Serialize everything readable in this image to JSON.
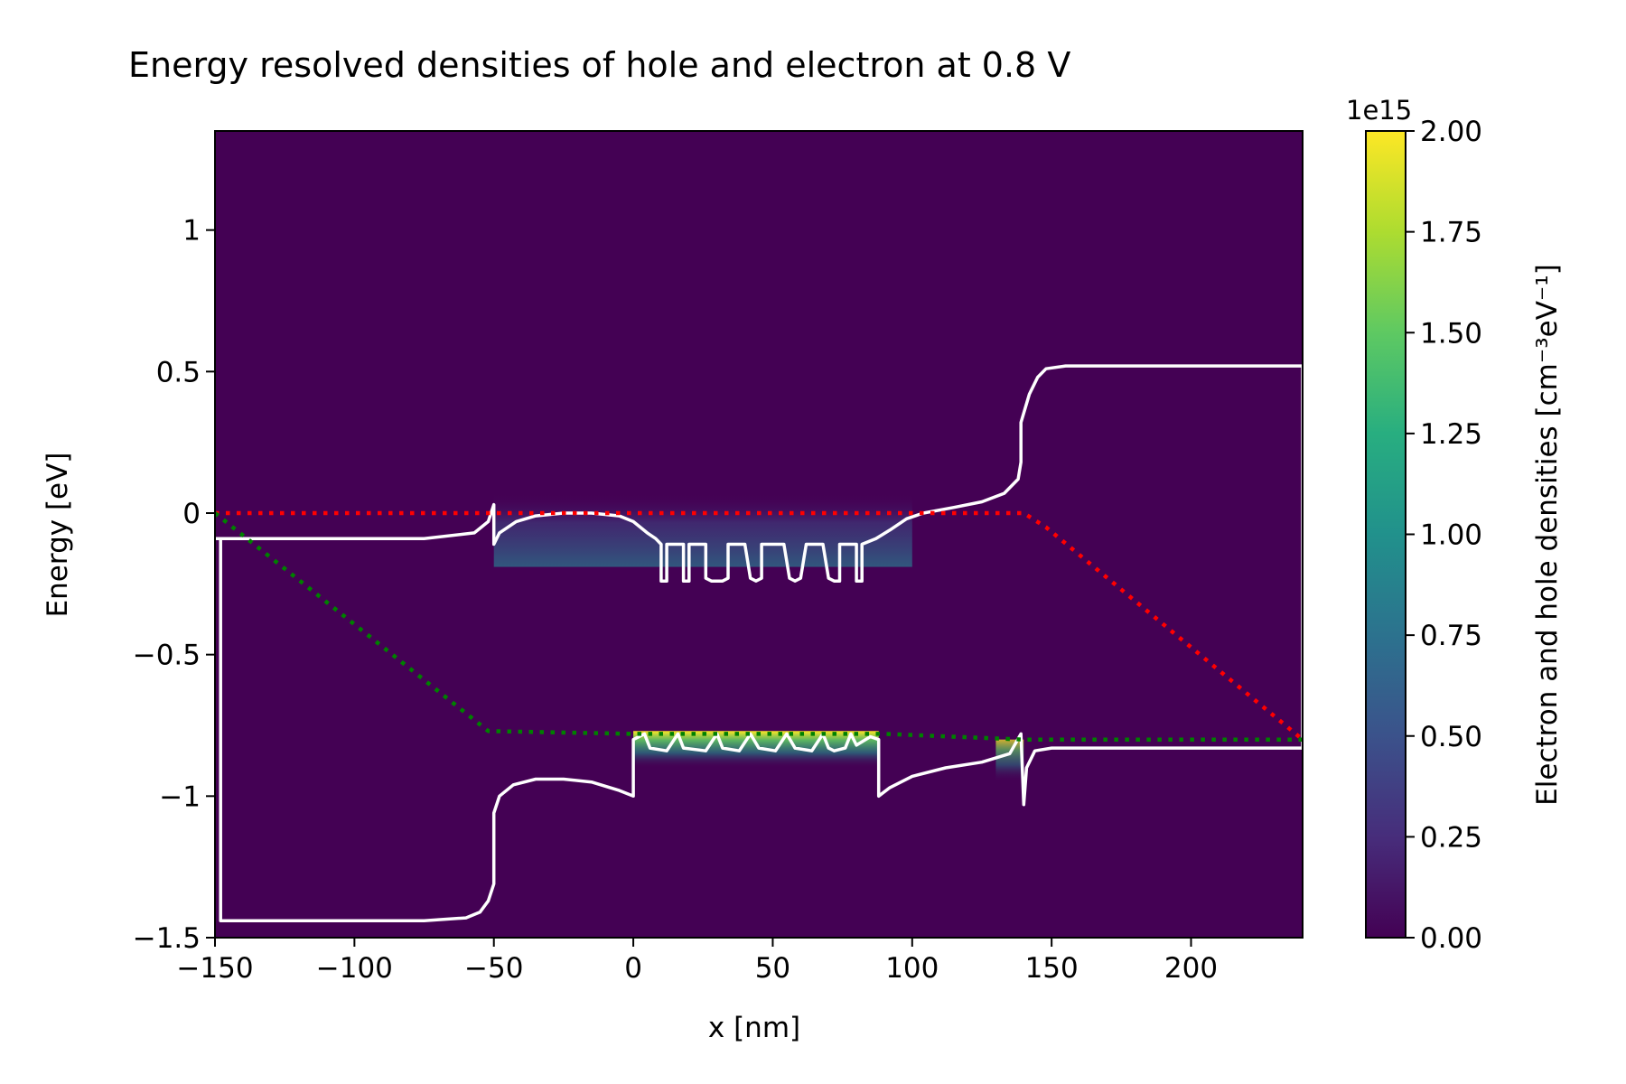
{
  "chart_data": {
    "type": "heatmap",
    "title": "Energy resolved densities of hole and electron at 0.8 V",
    "xlabel": "x [nm]",
    "ylabel": "Energy [eV]",
    "xlim": [
      -150,
      240
    ],
    "ylim": [
      -1.5,
      1.35
    ],
    "xticks": [
      -150,
      -100,
      -50,
      0,
      50,
      100,
      150,
      200
    ],
    "yticks": [
      -1.5,
      -1.0,
      -0.5,
      0.0,
      0.5,
      1.0
    ],
    "grid": false,
    "colorbar": {
      "label": "Electron and hole densities [cm⁻³eV⁻¹]",
      "exponent_label": "1e15",
      "colormap": "viridis",
      "range": [
        0,
        2.0
      ],
      "ticks": [
        "0.00",
        "0.25",
        "0.50",
        "0.75",
        "1.00",
        "1.25",
        "1.50",
        "1.75",
        "2.00"
      ]
    },
    "series": [
      {
        "name": "",
        "role": "conduction-band",
        "color": "#ffffff",
        "style": "solid",
        "points": [
          [
            -150,
            -0.09
          ],
          [
            -75,
            -0.09
          ],
          [
            -57,
            -0.07
          ],
          [
            -52,
            -0.03
          ],
          [
            -50,
            0.03
          ],
          [
            -50,
            -0.11
          ],
          [
            -48,
            -0.07
          ],
          [
            -42,
            -0.03
          ],
          [
            -35,
            -0.01
          ],
          [
            -25,
            0.0
          ],
          [
            -15,
            0.0
          ],
          [
            -5,
            -0.01
          ],
          [
            0,
            -0.03
          ],
          [
            5,
            -0.07
          ],
          [
            8,
            -0.09
          ],
          [
            10,
            -0.11
          ],
          [
            10,
            -0.24
          ],
          [
            12,
            -0.24
          ],
          [
            12,
            -0.11
          ],
          [
            18,
            -0.11
          ],
          [
            18,
            -0.24
          ],
          [
            20,
            -0.24
          ],
          [
            20,
            -0.11
          ],
          [
            26,
            -0.11
          ],
          [
            26,
            -0.23
          ],
          [
            28,
            -0.24
          ],
          [
            32,
            -0.24
          ],
          [
            34,
            -0.23
          ],
          [
            34,
            -0.11
          ],
          [
            40,
            -0.11
          ],
          [
            42,
            -0.23
          ],
          [
            44,
            -0.24
          ],
          [
            46,
            -0.23
          ],
          [
            46,
            -0.11
          ],
          [
            54,
            -0.11
          ],
          [
            56,
            -0.23
          ],
          [
            58,
            -0.24
          ],
          [
            60,
            -0.23
          ],
          [
            62,
            -0.11
          ],
          [
            68,
            -0.11
          ],
          [
            70,
            -0.23
          ],
          [
            72,
            -0.24
          ],
          [
            74,
            -0.24
          ],
          [
            74,
            -0.11
          ],
          [
            80,
            -0.11
          ],
          [
            80,
            -0.24
          ],
          [
            82,
            -0.24
          ],
          [
            82,
            -0.11
          ],
          [
            87,
            -0.09
          ],
          [
            92,
            -0.06
          ],
          [
            98,
            -0.02
          ],
          [
            104,
            0.0
          ],
          [
            115,
            0.02
          ],
          [
            125,
            0.04
          ],
          [
            133,
            0.07
          ],
          [
            138,
            0.12
          ],
          [
            139,
            0.18
          ],
          [
            139,
            0.32
          ],
          [
            142,
            0.42
          ],
          [
            145,
            0.48
          ],
          [
            148,
            0.51
          ],
          [
            155,
            0.52
          ],
          [
            240,
            0.52
          ],
          [
            240,
            -0.83
          ],
          [
            150,
            -0.83
          ],
          [
            144,
            -0.84
          ],
          [
            141,
            -0.9
          ],
          [
            140,
            -1.03
          ],
          [
            139,
            -0.78
          ],
          [
            135,
            -0.85
          ],
          [
            125,
            -0.88
          ],
          [
            112,
            -0.9
          ],
          [
            100,
            -0.93
          ],
          [
            92,
            -0.97
          ],
          [
            88,
            -1.0
          ],
          [
            88,
            -0.8
          ],
          [
            85,
            -0.79
          ],
          [
            80,
            -0.82
          ],
          [
            78,
            -0.78
          ],
          [
            76,
            -0.83
          ],
          [
            72,
            -0.84
          ],
          [
            70,
            -0.83
          ],
          [
            68,
            -0.78
          ],
          [
            64,
            -0.84
          ],
          [
            58,
            -0.83
          ],
          [
            55,
            -0.78
          ],
          [
            51,
            -0.84
          ],
          [
            45,
            -0.83
          ],
          [
            42,
            -0.78
          ],
          [
            38,
            -0.84
          ],
          [
            32,
            -0.83
          ],
          [
            30,
            -0.78
          ],
          [
            26,
            -0.84
          ],
          [
            18,
            -0.83
          ],
          [
            16,
            -0.78
          ],
          [
            12,
            -0.84
          ],
          [
            6,
            -0.83
          ],
          [
            4,
            -0.78
          ],
          [
            0,
            -0.8
          ],
          [
            0,
            -1.0
          ],
          [
            -5,
            -0.98
          ],
          [
            -15,
            -0.95
          ],
          [
            -25,
            -0.94
          ],
          [
            -35,
            -0.94
          ],
          [
            -43,
            -0.96
          ],
          [
            -48,
            -1.0
          ],
          [
            -50,
            -1.06
          ],
          [
            -50,
            -1.31
          ],
          [
            -52,
            -1.37
          ],
          [
            -55,
            -1.41
          ],
          [
            -60,
            -1.43
          ],
          [
            -75,
            -1.44
          ],
          [
            -148,
            -1.44
          ],
          [
            -148,
            -0.09
          ]
        ]
      },
      {
        "name": "",
        "role": "hole-quasi-fermi-level",
        "color": "#ff0000",
        "style": "dotted",
        "points": [
          [
            -150,
            0.0
          ],
          [
            140,
            0.0
          ],
          [
            148,
            -0.05
          ],
          [
            240,
            -0.8
          ]
        ]
      },
      {
        "name": "",
        "role": "electron-quasi-fermi-level",
        "color": "#008000",
        "style": "dotted",
        "points": [
          [
            -150,
            0.0
          ],
          [
            -52,
            -0.77
          ],
          [
            0,
            -0.78
          ],
          [
            90,
            -0.78
          ],
          [
            140,
            -0.8
          ],
          [
            240,
            -0.8
          ]
        ]
      }
    ],
    "density_regions": [
      {
        "role": "hole-density",
        "x": [
          -50,
          100
        ],
        "y": [
          -0.19,
          0.07
        ],
        "peak": 0.7
      },
      {
        "role": "electron-density",
        "x": [
          0,
          88
        ],
        "y": [
          -0.9,
          -0.77
        ],
        "peak": 2.0
      },
      {
        "role": "electron-density",
        "x": [
          130,
          140
        ],
        "y": [
          -0.95,
          -0.8
        ],
        "peak": 0.6
      }
    ]
  }
}
